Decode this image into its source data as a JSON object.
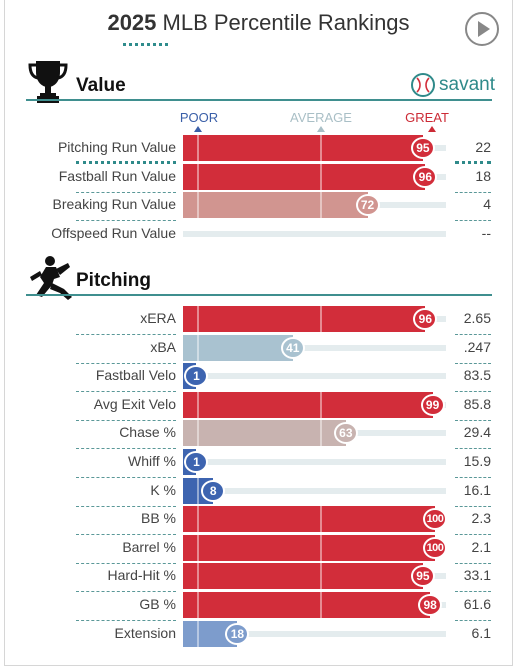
{
  "header": {
    "year": "2025",
    "title": "MLB Percentile Rankings",
    "play_icon": "play-icon"
  },
  "sections": {
    "value": {
      "title": "Value",
      "icon": "trophy-icon"
    },
    "pitching": {
      "title": "Pitching",
      "icon": "pitcher-silhouette-icon"
    }
  },
  "brand": {
    "name": "savant",
    "icon": "baseball-icon"
  },
  "scale": {
    "poor": "POOR",
    "average": "AVERAGE",
    "great": "GREAT"
  },
  "colors": {
    "red": "#d22d3a",
    "blue": "#3d64b0",
    "muted_red": "#d19590",
    "muted_blue": "#a9c2d0",
    "tan": "#c8b3b0",
    "light_blue": "#7d9ccc",
    "track": "#e4ecee",
    "teal": "#2f8c8c"
  },
  "chart_data": [
    {
      "type": "bar",
      "section": "Value",
      "xlim": [
        0,
        100
      ],
      "categories": [
        "Pitching Run Value",
        "Fastball Run Value",
        "Breaking Run Value",
        "Offspeed Run Value"
      ],
      "percentiles": [
        95,
        96,
        72,
        null
      ],
      "values": [
        "22",
        "18",
        "4",
        "--"
      ],
      "bar_colors": [
        "#d22d3a",
        "#d22d3a",
        "#d19590",
        null
      ]
    },
    {
      "type": "bar",
      "section": "Pitching",
      "xlim": [
        0,
        100
      ],
      "categories": [
        "xERA",
        "xBA",
        "Fastball Velo",
        "Avg Exit Velo",
        "Chase %",
        "Whiff %",
        "K %",
        "BB %",
        "Barrel %",
        "Hard-Hit %",
        "GB %",
        "Extension"
      ],
      "percentiles": [
        96,
        41,
        1,
        99,
        63,
        1,
        8,
        100,
        100,
        95,
        98,
        18
      ],
      "values": [
        "2.65",
        ".247",
        "83.5",
        "85.8",
        "29.4",
        "15.9",
        "16.1",
        "2.3",
        "2.1",
        "33.1",
        "61.6",
        "6.1"
      ],
      "bar_colors": [
        "#d22d3a",
        "#a9c2d0",
        "#3d64b0",
        "#d22d3a",
        "#c8b3b0",
        "#3d64b0",
        "#3d64b0",
        "#d22d3a",
        "#d22d3a",
        "#d22d3a",
        "#d22d3a",
        "#7d9ccc"
      ]
    }
  ]
}
